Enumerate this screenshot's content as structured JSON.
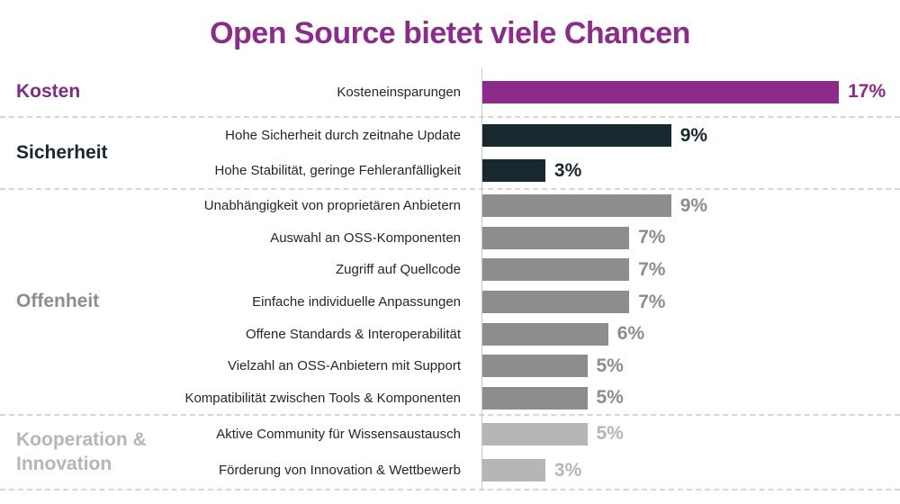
{
  "title": "Open Source bietet viele Chancen",
  "colors": {
    "purple": "#8d2b8c",
    "kosten_label": "#7d2b85",
    "dark": "#17282e",
    "gray": "#8d8d8d",
    "light_gray": "#b6b6b6",
    "row_label": "#262626",
    "separator": "#d6d6d6",
    "axis": "#c8c8c8"
  },
  "chart_data": {
    "type": "bar",
    "orientation": "horizontal",
    "unit": "%",
    "xlim": [
      0,
      17
    ],
    "grid": false,
    "legend": false,
    "title": "Open Source bietet viele Chancen",
    "groups": [
      {
        "name": "Kosten",
        "label_text": "Kosten",
        "label_color_key": "kosten_label",
        "bar_color_key": "purple",
        "rows": [
          {
            "label": "Kosteneinsparungen",
            "value": 17,
            "value_label": "17%"
          }
        ]
      },
      {
        "name": "Sicherheit",
        "label_text": "Sicherheit",
        "label_color_key": "dark",
        "bar_color_key": "dark",
        "rows": [
          {
            "label": "Hohe Sicherheit durch zeitnahe Update",
            "value": 9,
            "value_label": "9%"
          },
          {
            "label": "Hohe Stabilität, geringe Fehleranfälligkeit",
            "value": 3,
            "value_label": "3%"
          }
        ]
      },
      {
        "name": "Offenheit",
        "label_text": "Offenheit",
        "label_color_key": "gray",
        "bar_color_key": "gray",
        "rows": [
          {
            "label": "Unabhängigkeit von proprietären Anbietern",
            "value": 9,
            "value_label": "9%"
          },
          {
            "label": "Auswahl an OSS-Komponenten",
            "value": 7,
            "value_label": "7%"
          },
          {
            "label": "Zugriff auf Quellcode",
            "value": 7,
            "value_label": "7%"
          },
          {
            "label": "Einfache individuelle Anpassungen",
            "value": 7,
            "value_label": "7%"
          },
          {
            "label": "Offene Standards & Interoperabilität",
            "value": 6,
            "value_label": "6%"
          },
          {
            "label": "Vielzahl an OSS-Anbietern mit Support",
            "value": 5,
            "value_label": "5%"
          },
          {
            "label": "Kompatibilität zwischen Tools & Komponenten",
            "value": 5,
            "value_label": "5%"
          }
        ]
      },
      {
        "name": "Kooperation & Innovation",
        "label_text": "Kooperation &\nInnovation",
        "label_color_key": "light_gray",
        "bar_color_key": "light_gray",
        "rows": [
          {
            "label": "Aktive Community für Wissensaustausch",
            "value": 5,
            "value_label": "5%"
          },
          {
            "label": "Förderung von Innovation & Wettbewerb",
            "value": 3,
            "value_label": "3%"
          }
        ]
      }
    ]
  }
}
